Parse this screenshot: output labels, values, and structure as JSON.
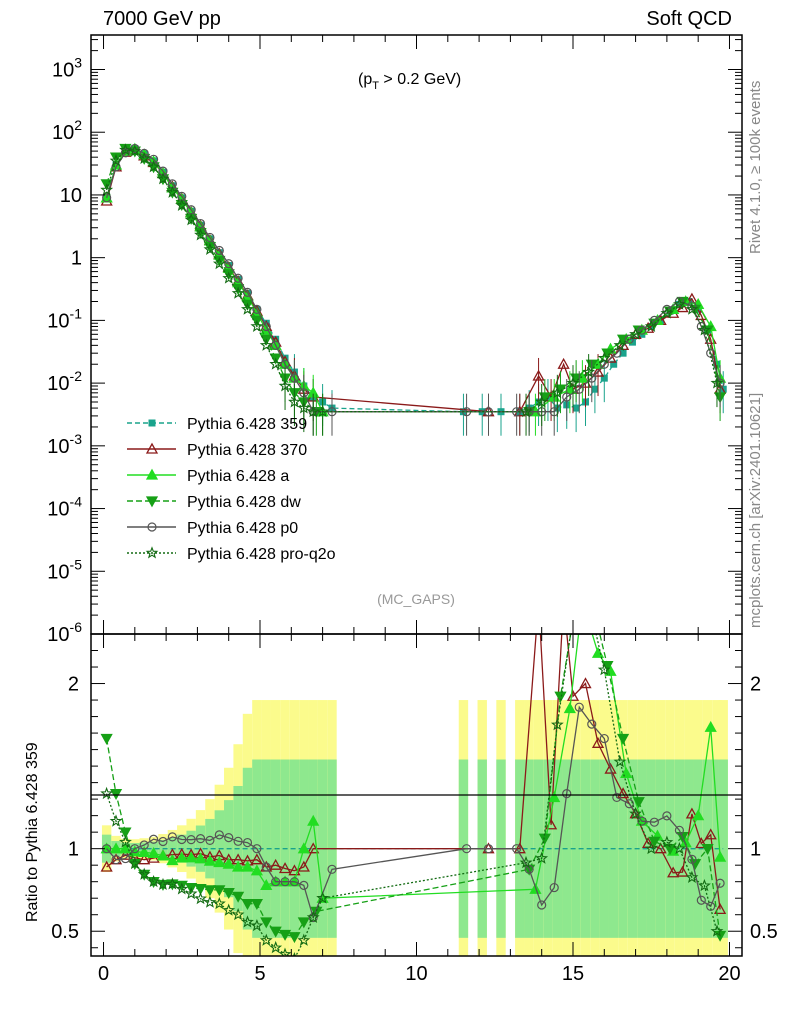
{
  "header": {
    "left": "7000 GeV pp",
    "right": "Soft QCD"
  },
  "side_labels": {
    "top": "Rivet 4.1.0, ≥ 100k events",
    "bottom": "mcplots.cern.ch [arXiv:2401.10621]"
  },
  "cut_label": {
    "main": "(p",
    "sub": "T",
    "rest": " > 0.2 GeV)"
  },
  "watermark": "(MC_GAPS)",
  "ratio_ylabel": "Ratio to Pythia 6.428 359",
  "colors": {
    "s359": "#1aa38c",
    "s370": "#8b1a1a",
    "a": "#22dd22",
    "dw": "#16a016",
    "p0": "#555555",
    "pro": "#136b13",
    "band_yellow": "#fbfb8c",
    "band_green": "#8ee88e"
  },
  "chart_data": {
    "type": "line",
    "xlim": [
      -0.4,
      20.4
    ],
    "main_ylim_log10": [
      -6,
      3.55
    ],
    "ratio_ylim": [
      0.35,
      2.3
    ],
    "main_yticks": [
      "10^-6",
      "10^-5",
      "10^-4",
      "10^-3",
      "10^-2",
      "10^-1",
      "1",
      "10",
      "10^2",
      "10^3"
    ],
    "ratio_yticks": [
      "0.5",
      "1",
      "2"
    ],
    "xticks": [
      "0",
      "5",
      "10",
      "15",
      "20"
    ],
    "series": [
      {
        "name": "Pythia 6.428 359",
        "style": "s359",
        "x": [
          0.1,
          0.4,
          0.7,
          1.0,
          1.3,
          1.6,
          1.9,
          2.2,
          2.5,
          2.8,
          3.1,
          3.4,
          3.7,
          4.0,
          4.3,
          4.6,
          4.9,
          5.2,
          5.5,
          5.8,
          6.1,
          6.4,
          6.7,
          7.0,
          7.3,
          11.5,
          12.1,
          12.7,
          13.3,
          13.6,
          13.9,
          14.2,
          14.5,
          14.8,
          15.1,
          15.4,
          15.7,
          16.0,
          16.3,
          16.6,
          16.9,
          17.2,
          17.5,
          17.8,
          18.1,
          18.4,
          18.7,
          19.0,
          19.3,
          19.6,
          19.8
        ],
        "y": [
          9,
          30,
          50,
          55,
          45,
          35,
          23,
          14,
          9,
          5.5,
          3.3,
          2.0,
          1.2,
          0.75,
          0.45,
          0.27,
          0.15,
          0.09,
          0.05,
          0.025,
          0.015,
          0.009,
          0.006,
          0.005,
          0.004,
          0.0035,
          0.0035,
          0.0035,
          0.0035,
          0.004,
          0.005,
          0.006,
          0.004,
          0.0045,
          0.004,
          0.005,
          0.008,
          0.012,
          0.02,
          0.03,
          0.045,
          0.06,
          0.08,
          0.1,
          0.14,
          0.18,
          0.2,
          0.15,
          0.07,
          0.02,
          0.008
        ]
      },
      {
        "name": "Pythia 6.428 370",
        "style": "s370",
        "x": [
          0.1,
          0.4,
          0.7,
          1.0,
          1.3,
          1.6,
          1.9,
          2.2,
          2.5,
          2.8,
          3.1,
          3.4,
          3.7,
          4.0,
          4.3,
          4.6,
          4.9,
          5.2,
          5.5,
          5.8,
          6.1,
          6.4,
          6.7,
          12.3,
          13.3,
          13.9,
          14.3,
          14.7,
          15.0,
          15.4,
          15.8,
          16.2,
          16.6,
          17.0,
          17.4,
          17.8,
          18.2,
          18.5,
          18.8,
          19.1,
          19.4,
          19.7
        ],
        "y": [
          8,
          28,
          48,
          52,
          42,
          33,
          22,
          13.5,
          8.7,
          5.3,
          3.2,
          1.9,
          1.15,
          0.7,
          0.42,
          0.25,
          0.14,
          0.08,
          0.045,
          0.022,
          0.013,
          0.008,
          0.006,
          0.0035,
          0.0035,
          0.013,
          0.006,
          0.02,
          0.008,
          0.01,
          0.015,
          0.025,
          0.04,
          0.06,
          0.075,
          0.1,
          0.13,
          0.16,
          0.22,
          0.12,
          0.05,
          0.008
        ]
      },
      {
        "name": "Pythia 6.428 a",
        "style": "a",
        "x": [
          0.1,
          0.4,
          0.7,
          1.0,
          1.3,
          1.6,
          1.9,
          2.2,
          2.5,
          2.8,
          3.1,
          3.4,
          3.7,
          4.0,
          4.3,
          4.6,
          4.9,
          5.2,
          5.5,
          5.8,
          6.1,
          6.4,
          6.7,
          7.0,
          13.8,
          14.4,
          14.9,
          15.3,
          15.8,
          16.2,
          16.7,
          17.2,
          17.7,
          18.2,
          18.6,
          19.0,
          19.4,
          19.7
        ],
        "y": [
          9,
          30,
          50,
          54,
          44,
          34,
          22,
          13,
          8.5,
          5.2,
          3.1,
          1.85,
          1.1,
          0.68,
          0.4,
          0.24,
          0.13,
          0.07,
          0.04,
          0.02,
          0.012,
          0.009,
          0.007,
          0.0035,
          0.0035,
          0.006,
          0.008,
          0.012,
          0.02,
          0.035,
          0.05,
          0.07,
          0.1,
          0.15,
          0.2,
          0.18,
          0.08,
          0.012
        ]
      },
      {
        "name": "Pythia 6.428 dw",
        "style": "dw",
        "x": [
          0.1,
          0.4,
          0.7,
          1.0,
          1.3,
          1.6,
          1.9,
          2.2,
          2.5,
          2.8,
          3.1,
          3.4,
          3.7,
          4.0,
          4.3,
          4.6,
          4.9,
          5.2,
          5.5,
          5.8,
          6.1,
          6.4,
          6.8,
          13.6,
          14.1,
          14.6,
          15.1,
          15.6,
          16.1,
          16.6,
          17.1,
          17.6,
          18.1,
          18.5,
          18.9,
          19.3,
          19.7
        ],
        "y": [
          15,
          40,
          55,
          50,
          38,
          28,
          18,
          11,
          7,
          4.2,
          2.5,
          1.5,
          0.9,
          0.55,
          0.32,
          0.18,
          0.1,
          0.05,
          0.025,
          0.012,
          0.007,
          0.005,
          0.0035,
          0.0035,
          0.006,
          0.008,
          0.012,
          0.02,
          0.03,
          0.05,
          0.07,
          0.09,
          0.14,
          0.2,
          0.15,
          0.07,
          0.006
        ]
      },
      {
        "name": "Pythia 6.428 p0",
        "style": "p0",
        "x": [
          0.1,
          0.4,
          0.7,
          1.0,
          1.3,
          1.6,
          1.9,
          2.2,
          2.5,
          2.8,
          3.1,
          3.4,
          3.7,
          4.0,
          4.3,
          4.6,
          4.9,
          5.2,
          5.5,
          5.8,
          6.1,
          6.4,
          6.7,
          7.3,
          11.6,
          12.3,
          13.2,
          13.6,
          14.0,
          14.4,
          14.8,
          15.2,
          15.6,
          16.0,
          16.4,
          16.8,
          17.2,
          17.6,
          18.0,
          18.4,
          18.8,
          19.1,
          19.4,
          19.7
        ],
        "y": [
          9,
          28,
          47,
          55,
          46,
          37,
          24,
          15,
          9.5,
          5.8,
          3.5,
          2.1,
          1.3,
          0.8,
          0.47,
          0.28,
          0.15,
          0.08,
          0.04,
          0.02,
          0.012,
          0.007,
          0.0035,
          0.0035,
          0.0035,
          0.0035,
          0.0035,
          0.0035,
          0.0035,
          0.0035,
          0.006,
          0.008,
          0.012,
          0.02,
          0.03,
          0.05,
          0.07,
          0.1,
          0.15,
          0.2,
          0.17,
          0.08,
          0.03,
          0.01
        ]
      },
      {
        "name": "Pythia 6.428 pro-q2o",
        "style": "pro",
        "x": [
          0.1,
          0.4,
          0.7,
          1.0,
          1.3,
          1.6,
          1.9,
          2.2,
          2.5,
          2.8,
          3.1,
          3.4,
          3.7,
          4.0,
          4.3,
          4.6,
          4.9,
          5.2,
          5.5,
          5.8,
          6.1,
          6.4,
          6.7,
          7.0,
          13.5,
          14.0,
          14.5,
          15.0,
          15.5,
          16.0,
          16.5,
          17.0,
          17.5,
          18.0,
          18.4,
          18.8,
          19.2,
          19.6
        ],
        "y": [
          12,
          35,
          52,
          50,
          38,
          28,
          18,
          11,
          6.8,
          4.0,
          2.3,
          1.35,
          0.8,
          0.47,
          0.27,
          0.15,
          0.08,
          0.04,
          0.02,
          0.009,
          0.005,
          0.004,
          0.0035,
          0.0035,
          0.0035,
          0.005,
          0.007,
          0.01,
          0.015,
          0.025,
          0.04,
          0.06,
          0.08,
          0.13,
          0.18,
          0.15,
          0.07,
          0.01
        ]
      }
    ]
  }
}
